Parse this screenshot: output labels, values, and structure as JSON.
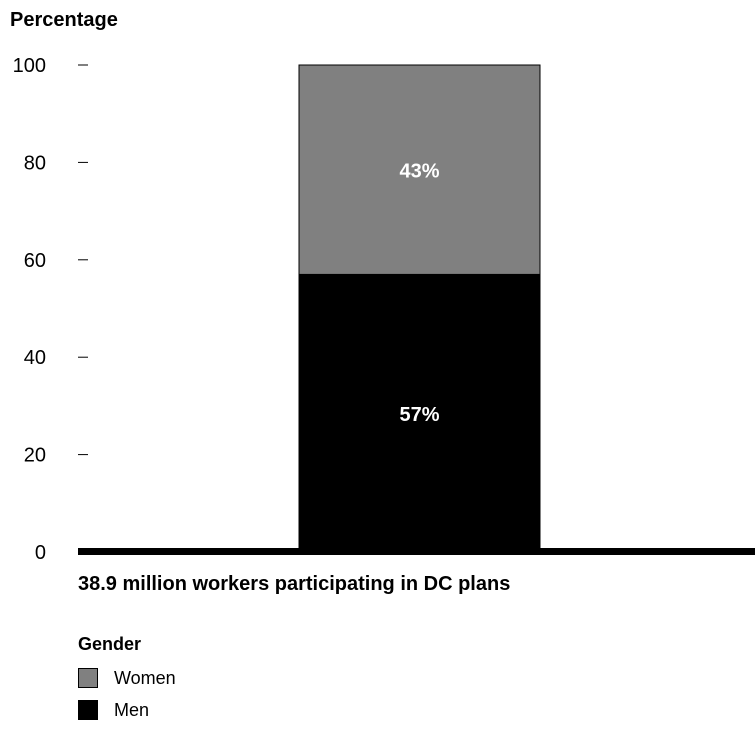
{
  "chart_data": {
    "type": "bar",
    "stacked": true,
    "ylabel": "Percentage",
    "xlabel": "38.9 million workers participating in DC plans",
    "ylim": [
      0,
      100
    ],
    "yticks": [
      "0",
      "20",
      "40",
      "60",
      "80",
      "100"
    ],
    "grid": false,
    "categories": [
      "38.9 million workers participating in DC plans"
    ],
    "series": [
      {
        "name": "Men",
        "values": [
          57
        ],
        "label": "57%",
        "color": "#000000"
      },
      {
        "name": "Women",
        "values": [
          43
        ],
        "label": "43%",
        "color": "#808080"
      }
    ],
    "legend": {
      "title": "Gender",
      "placement": "bottom-left",
      "items": [
        {
          "name": "Women",
          "color": "#808080"
        },
        {
          "name": "Men",
          "color": "#000000"
        }
      ]
    }
  }
}
